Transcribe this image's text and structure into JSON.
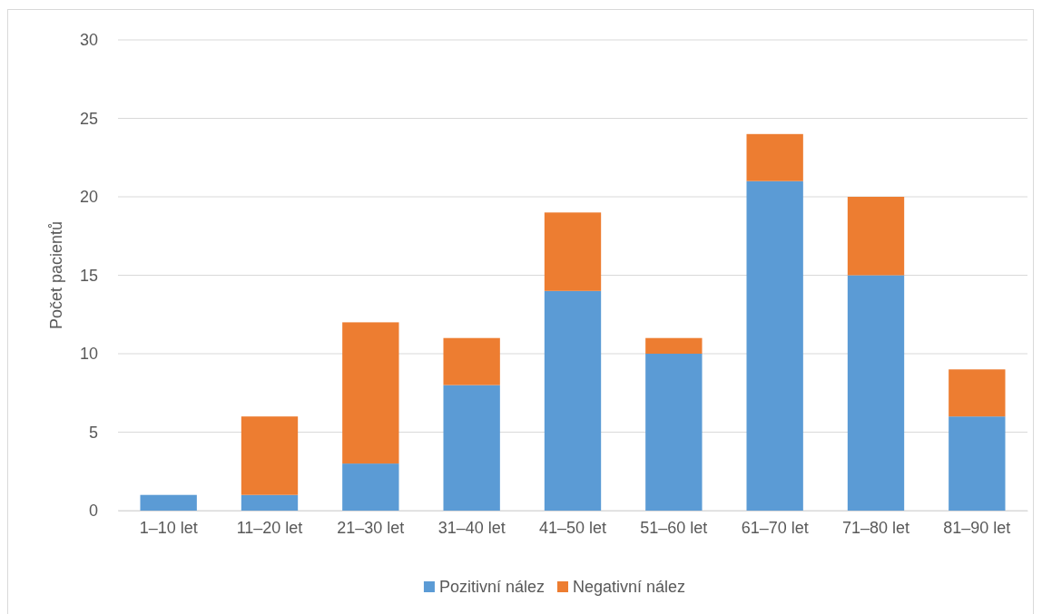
{
  "chart_data": {
    "type": "bar",
    "stacked": true,
    "ylabel": "Počet pacientů",
    "categories": [
      "1–10 let",
      "11–20 let",
      "21–30 let",
      "31–40 let",
      "41–50 let",
      "51–60 let",
      "61–70 let",
      "71–80 let",
      "81–90 let"
    ],
    "series": [
      {
        "name": "Pozitivní nález",
        "color": "#5b9bd5",
        "values": [
          1,
          1,
          3,
          8,
          14,
          10,
          21,
          15,
          6
        ]
      },
      {
        "name": "Negativní nález",
        "color": "#ed7d31",
        "values": [
          0,
          5,
          9,
          3,
          5,
          1,
          3,
          5,
          3
        ]
      }
    ],
    "ylim": [
      0,
      30
    ],
    "yticks": [
      0,
      5,
      10,
      15,
      20,
      25,
      30
    ],
    "grid": "y",
    "legend": "bottom"
  }
}
